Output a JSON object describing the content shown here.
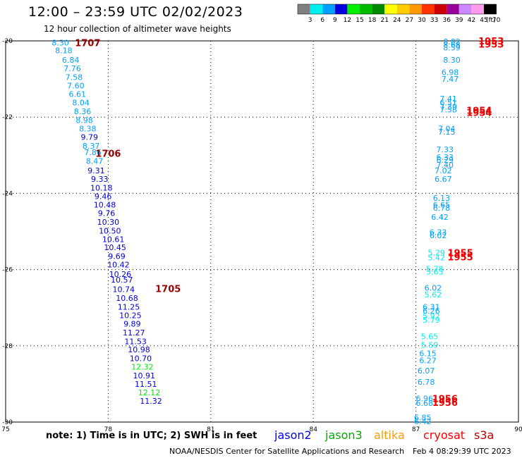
{
  "header": {
    "title": "12:00 – 23:59 UTC 02/02/2023",
    "subtitle": "12 hour collection of altimeter wave heights"
  },
  "footer": {
    "note": "note:  1) Time is in UTC;  2) SWH is in feet",
    "credit": "NOAA/NESDIS Center for Satellite Applications and Research",
    "timestamp": "Feb  4 08:29:39 UTC 2023"
  },
  "satellites": [
    {
      "name": "jason2",
      "color": "#0000ff"
    },
    {
      "name": "jason3",
      "color": "#00aa00"
    },
    {
      "name": "altika",
      "color": "#ff9900"
    },
    {
      "name": "cryosat",
      "color": "#ff0000"
    },
    {
      "name": "s3a",
      "color": "#bb0000"
    }
  ],
  "chart_data": {
    "type": "scatter",
    "title": "12:00 – 23:59 UTC 02/02/2023",
    "xlim": [
      75,
      90
    ],
    "ylim": [
      -30,
      -20
    ],
    "x_ticks": [
      "75",
      "78",
      "81",
      "84",
      "87",
      "90"
    ],
    "y_ticks": [
      "-20",
      "-22",
      "-24",
      "-26",
      "-28",
      "-30"
    ],
    "grid": true,
    "legend": {
      "position": "top-right",
      "unit": "(ft)",
      "labels": [
        "3",
        "6",
        "9",
        "12",
        "15",
        "18",
        "21",
        "24",
        "27",
        "30",
        "33",
        "36",
        "39",
        "42",
        "45",
        "70"
      ],
      "colors": [
        "#808080",
        "#00eeee",
        "#00a0ff",
        "#0000dd",
        "#00ee00",
        "#00bb00",
        "#008800",
        "#ffff00",
        "#ffcc00",
        "#ff9900",
        "#ff3300",
        "#cc0000",
        "#990099",
        "#cc88ff",
        "#ff99ee",
        "#000000"
      ]
    },
    "points": [
      {
        "lon": 76.6,
        "lat": -20.05,
        "v": "8.30"
      },
      {
        "lon": 76.7,
        "lat": -20.25,
        "v": "8.18"
      },
      {
        "lon": 76.9,
        "lat": -20.5,
        "v": "6.84"
      },
      {
        "lon": 76.95,
        "lat": -20.72,
        "v": "7.76"
      },
      {
        "lon": 77.0,
        "lat": -20.95,
        "v": "7.58"
      },
      {
        "lon": 77.05,
        "lat": -21.17,
        "v": "7.60"
      },
      {
        "lon": 77.1,
        "lat": -21.4,
        "v": "6.61"
      },
      {
        "lon": 77.2,
        "lat": -21.62,
        "v": "8.04"
      },
      {
        "lon": 77.25,
        "lat": -21.85,
        "v": "8.36"
      },
      {
        "lon": 77.3,
        "lat": -22.08,
        "v": "8.98"
      },
      {
        "lon": 77.4,
        "lat": -22.3,
        "v": "8.38"
      },
      {
        "lon": 77.45,
        "lat": -22.52,
        "v": "9.79"
      },
      {
        "lon": 77.5,
        "lat": -22.75,
        "v": "8.37"
      },
      {
        "lon": 77.55,
        "lat": -22.92,
        "v": "7.86"
      },
      {
        "lon": 77.6,
        "lat": -23.15,
        "v": "8.47"
      },
      {
        "lon": 77.65,
        "lat": -23.4,
        "v": "9.31"
      },
      {
        "lon": 77.75,
        "lat": -23.62,
        "v": "9.33"
      },
      {
        "lon": 77.8,
        "lat": -23.85,
        "v": "10.18"
      },
      {
        "lon": 77.85,
        "lat": -24.08,
        "v": "9.46"
      },
      {
        "lon": 77.9,
        "lat": -24.3,
        "v": "10.48"
      },
      {
        "lon": 77.95,
        "lat": -24.52,
        "v": "9.76"
      },
      {
        "lon": 78.0,
        "lat": -24.75,
        "v": "10.30"
      },
      {
        "lon": 78.05,
        "lat": -24.98,
        "v": "10.50"
      },
      {
        "lon": 78.15,
        "lat": -25.2,
        "v": "10.61"
      },
      {
        "lon": 78.2,
        "lat": -25.42,
        "v": "10.45"
      },
      {
        "lon": 78.25,
        "lat": -25.65,
        "v": "9.69"
      },
      {
        "lon": 78.3,
        "lat": -25.87,
        "v": "10.42"
      },
      {
        "lon": 78.35,
        "lat": -26.12,
        "v": "10.26"
      },
      {
        "lon": 78.4,
        "lat": -26.27,
        "v": "10.57"
      },
      {
        "lon": 78.45,
        "lat": -26.52,
        "v": "10.74"
      },
      {
        "lon": 78.55,
        "lat": -26.75,
        "v": "10.68"
      },
      {
        "lon": 78.6,
        "lat": -26.98,
        "v": "11.25"
      },
      {
        "lon": 78.65,
        "lat": -27.2,
        "v": "10.25"
      },
      {
        "lon": 78.7,
        "lat": -27.42,
        "v": "9.89"
      },
      {
        "lon": 78.75,
        "lat": -27.65,
        "v": "11.27"
      },
      {
        "lon": 78.8,
        "lat": -27.88,
        "v": "11.53"
      },
      {
        "lon": 78.9,
        "lat": -28.1,
        "v": "10.98"
      },
      {
        "lon": 78.95,
        "lat": -28.33,
        "v": "10.70"
      },
      {
        "lon": 79.0,
        "lat": -28.55,
        "v": "12.32"
      },
      {
        "lon": 79.05,
        "lat": -28.78,
        "v": "10.91"
      },
      {
        "lon": 79.1,
        "lat": -29.0,
        "v": "11.51"
      },
      {
        "lon": 79.2,
        "lat": -29.22,
        "v": "12.12"
      },
      {
        "lon": 79.25,
        "lat": -29.45,
        "v": "11.32"
      },
      {
        "lon": 88.05,
        "lat": -20.02,
        "v": "8.82"
      },
      {
        "lon": 88.05,
        "lat": -20.1,
        "v": "8.68"
      },
      {
        "lon": 88.05,
        "lat": -20.18,
        "v": "8.59"
      },
      {
        "lon": 88.05,
        "lat": -20.5,
        "v": "8.30"
      },
      {
        "lon": 88.0,
        "lat": -20.82,
        "v": "6.98"
      },
      {
        "lon": 88.0,
        "lat": -21.0,
        "v": "7.47"
      },
      {
        "lon": 87.95,
        "lat": -21.52,
        "v": "7.41"
      },
      {
        "lon": 87.95,
        "lat": -21.62,
        "v": "6.51"
      },
      {
        "lon": 87.95,
        "lat": -21.73,
        "v": "7.39"
      },
      {
        "lon": 87.95,
        "lat": -21.8,
        "v": "7.58"
      },
      {
        "lon": 87.9,
        "lat": -22.3,
        "v": "7.04"
      },
      {
        "lon": 87.9,
        "lat": -22.38,
        "v": "7.15"
      },
      {
        "lon": 87.85,
        "lat": -22.85,
        "v": "7.33"
      },
      {
        "lon": 87.85,
        "lat": -23.05,
        "v": "6.33"
      },
      {
        "lon": 87.85,
        "lat": -23.12,
        "v": "6.29"
      },
      {
        "lon": 87.85,
        "lat": -23.25,
        "v": "7.40"
      },
      {
        "lon": 87.8,
        "lat": -23.4,
        "v": "7.02"
      },
      {
        "lon": 87.8,
        "lat": -23.62,
        "v": "6.67"
      },
      {
        "lon": 87.75,
        "lat": -24.12,
        "v": "6.13"
      },
      {
        "lon": 87.75,
        "lat": -24.3,
        "v": "6.65"
      },
      {
        "lon": 87.75,
        "lat": -24.38,
        "v": "6.78"
      },
      {
        "lon": 87.7,
        "lat": -24.62,
        "v": "6.42"
      },
      {
        "lon": 87.65,
        "lat": -25.02,
        "v": "6.33"
      },
      {
        "lon": 87.65,
        "lat": -25.1,
        "v": "6.02"
      },
      {
        "lon": 87.6,
        "lat": -25.55,
        "v": "5.29"
      },
      {
        "lon": 87.6,
        "lat": -25.68,
        "v": "5.42"
      },
      {
        "lon": 87.55,
        "lat": -25.98,
        "v": "5.78"
      },
      {
        "lon": 87.55,
        "lat": -26.05,
        "v": "5.63"
      },
      {
        "lon": 87.5,
        "lat": -26.48,
        "v": "6.02"
      },
      {
        "lon": 87.5,
        "lat": -26.65,
        "v": "5.62"
      },
      {
        "lon": 87.45,
        "lat": -26.98,
        "v": "6.31"
      },
      {
        "lon": 87.45,
        "lat": -27.08,
        "v": "6.26"
      },
      {
        "lon": 87.45,
        "lat": -27.22,
        "v": "5.92"
      },
      {
        "lon": 87.45,
        "lat": -27.32,
        "v": "5.79"
      },
      {
        "lon": 87.4,
        "lat": -27.75,
        "v": "5.65"
      },
      {
        "lon": 87.4,
        "lat": -27.98,
        "v": "5.59"
      },
      {
        "lon": 87.35,
        "lat": -28.2,
        "v": "6.15"
      },
      {
        "lon": 87.35,
        "lat": -28.38,
        "v": "6.27"
      },
      {
        "lon": 87.3,
        "lat": -28.65,
        "v": "6.07"
      },
      {
        "lon": 87.3,
        "lat": -28.95,
        "v": "6.78"
      },
      {
        "lon": 87.25,
        "lat": -29.38,
        "v": "6.96"
      },
      {
        "lon": 87.25,
        "lat": -29.5,
        "v": "6.68"
      },
      {
        "lon": 87.2,
        "lat": -29.88,
        "v": "6.85"
      },
      {
        "lon": 87.2,
        "lat": -29.98,
        "v": "6.42"
      }
    ],
    "time_labels": [
      {
        "lon": 77.4,
        "lat": -20.05,
        "v": "1707",
        "color": "#990000"
      },
      {
        "lon": 78.0,
        "lat": -22.95,
        "v": "1706",
        "color": "#990000"
      },
      {
        "lon": 79.75,
        "lat": -26.5,
        "v": "1705",
        "color": "#990000"
      },
      {
        "lon": 89.2,
        "lat": -20.0,
        "v": "1953",
        "color": "#ee0000"
      },
      {
        "lon": 89.2,
        "lat": -20.08,
        "v": "1953",
        "color": "#ee0000"
      },
      {
        "lon": 88.85,
        "lat": -21.82,
        "v": "1954",
        "color": "#ee0000"
      },
      {
        "lon": 88.85,
        "lat": -21.88,
        "v": "1954",
        "color": "#ee0000"
      },
      {
        "lon": 88.3,
        "lat": -25.55,
        "v": "1955",
        "color": "#ee0000"
      },
      {
        "lon": 88.3,
        "lat": -25.67,
        "v": "1955",
        "color": "#ee0000"
      },
      {
        "lon": 87.85,
        "lat": -29.38,
        "v": "1956",
        "color": "#ee0000"
      },
      {
        "lon": 87.85,
        "lat": -29.48,
        "v": "1956",
        "color": "#ee0000"
      }
    ]
  }
}
